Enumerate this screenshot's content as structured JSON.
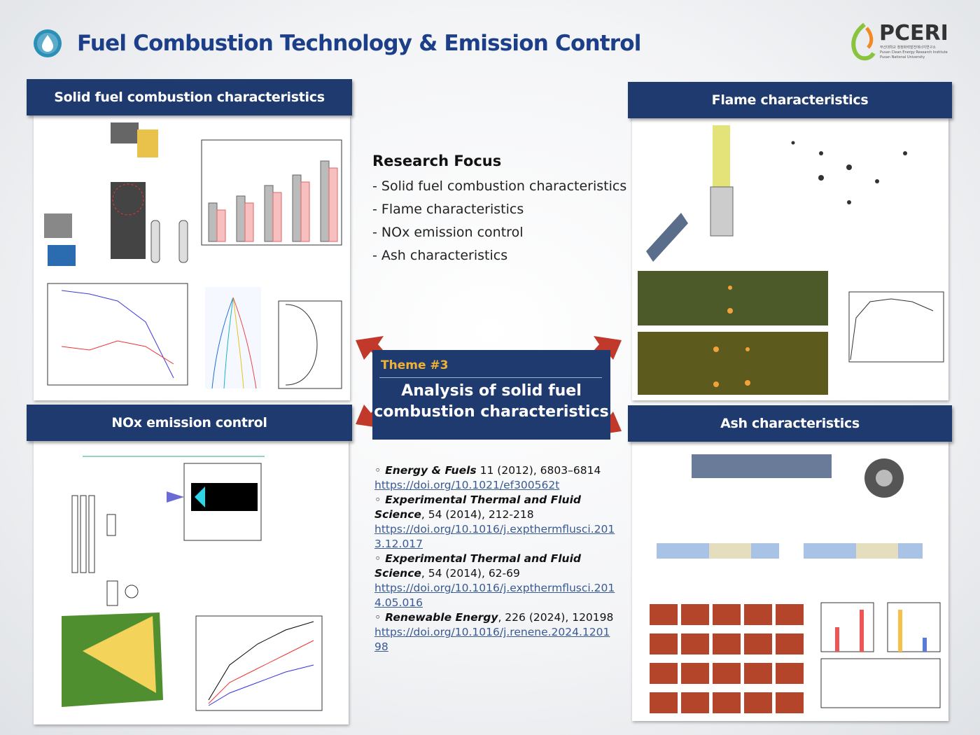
{
  "header": {
    "title": "Fuel Combustion Technology & Emission Control",
    "logo_text": "PCERI",
    "logo_subtitle": [
      "부산대학교 청정화력발전에너지연구소",
      "Pusan Clean Energy Research Institute",
      "Pusan National University"
    ]
  },
  "panels": [
    {
      "title": "Solid fuel combustion characteristics"
    },
    {
      "title": "Flame characteristics"
    },
    {
      "title": "NOx emission control"
    },
    {
      "title": "Ash characteristics"
    }
  ],
  "research_focus": {
    "title": "Research Focus",
    "items": [
      "- Solid fuel combustion characteristics",
      "- Flame characteristics",
      "- NOx emission control",
      "- Ash characteristics"
    ]
  },
  "theme": {
    "label": "Theme #3",
    "title": [
      "Analysis of solid fuel",
      "combustion characteristics"
    ]
  },
  "references": {
    "bullet": "◦",
    "items": [
      {
        "journal": "Energy & Fuels",
        "details": "11 (2012), 6803–6814",
        "url": "https://doi.org/10.1021/ef300562t"
      },
      {
        "journal": "Experimental Thermal and Fluid Science",
        "details": ", 54 (2014), 212-218",
        "url": "https://doi.org/10.1016/j.expthermflusci.2013.12.017"
      },
      {
        "journal": "Experimental Thermal and Fluid Science",
        "details": ", 54 (2014), 62-69",
        "url": "https://doi.org/10.1016/j.expthermflusci.2014.05.016"
      },
      {
        "journal": "Renewable Energy",
        "details": ", 226 (2024), 120198",
        "url": "https://doi.org/10.1016/j.renene.2024.120198"
      }
    ]
  }
}
